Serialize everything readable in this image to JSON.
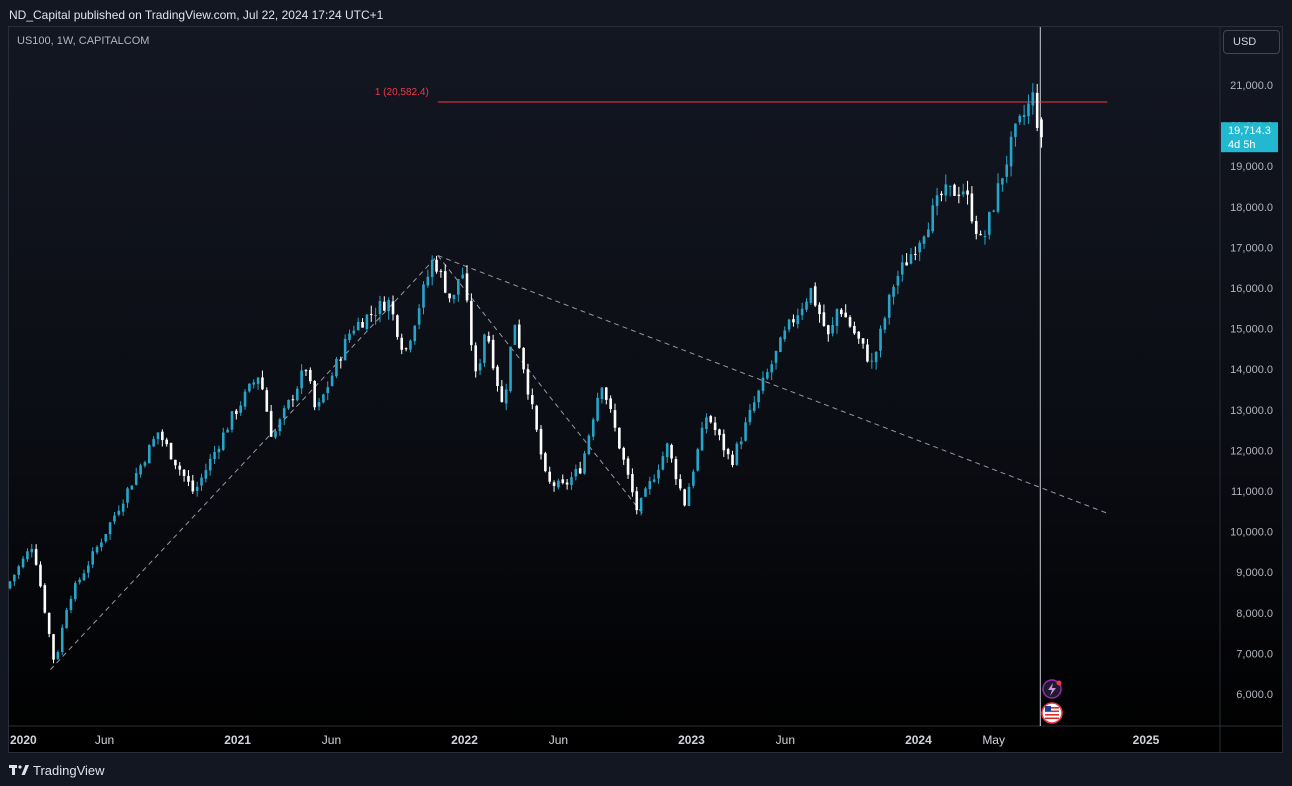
{
  "header": {
    "published_text": "ND_Capital published on TradingView.com, Jul 22, 2024 17:24 UTC+1"
  },
  "symbol_text": "US100, 1W, CAPITALCOM",
  "currency_button": "USD",
  "footer": {
    "brand": "TradingView"
  },
  "colors": {
    "up": "#26a5c9",
    "down": "#ffffff",
    "level_line": "#f23645",
    "price_label_bg": "#22b8cf",
    "trendline": "#9598a1",
    "background": "#131722"
  },
  "chart_data": {
    "type": "candlestick",
    "instrument": "US100",
    "timeframe": "1W",
    "ylim": [
      5400,
      22300
    ],
    "y_ticks": [
      6000,
      7000,
      8000,
      9000,
      10000,
      11000,
      12000,
      13000,
      14000,
      15000,
      16000,
      17000,
      18000,
      19000,
      20000,
      21000
    ],
    "y_tick_labels": [
      "6,000.0",
      "7,000.0",
      "8,000.0",
      "9,000.0",
      "10,000.0",
      "11,000.0",
      "12,000.0",
      "13,000.0",
      "14,000.0",
      "15,000.0",
      "16,000.0",
      "17,000.0",
      "18,000.0",
      "19,000.0",
      "20,000.0",
      "21,000.0"
    ],
    "x_ticks": [
      {
        "label": "2020",
        "date": "2020-01-01",
        "bold": true
      },
      {
        "label": "Jun",
        "date": "2020-06-01",
        "bold": false
      },
      {
        "label": "2021",
        "date": "2021-01-01",
        "bold": true
      },
      {
        "label": "Jun",
        "date": "2021-06-01",
        "bold": false
      },
      {
        "label": "2022",
        "date": "2022-01-01",
        "bold": true
      },
      {
        "label": "Jun",
        "date": "2022-06-01",
        "bold": false
      },
      {
        "label": "2023",
        "date": "2023-01-01",
        "bold": true
      },
      {
        "label": "Jun",
        "date": "2023-06-01",
        "bold": false
      },
      {
        "label": "2024",
        "date": "2024-01-01",
        "bold": true
      },
      {
        "label": "May",
        "date": "2024-05-01",
        "bold": false
      },
      {
        "label": "2025",
        "date": "2025-01-01",
        "bold": true
      }
    ],
    "path": [
      [
        "2020-01-01",
        8600
      ],
      [
        "2020-02-14",
        9700
      ],
      [
        "2020-03-20",
        6700
      ],
      [
        "2020-04-10",
        8300
      ],
      [
        "2020-06-10",
        10000
      ],
      [
        "2020-09-02",
        12450
      ],
      [
        "2020-10-30",
        10950
      ],
      [
        "2020-12-31",
        12850
      ],
      [
        "2021-02-12",
        13900
      ],
      [
        "2021-03-05",
        12300
      ],
      [
        "2021-04-28",
        14050
      ],
      [
        "2021-05-14",
        12900
      ],
      [
        "2021-07-10",
        15000
      ],
      [
        "2021-09-07",
        15700
      ],
      [
        "2021-10-04",
        14400
      ],
      [
        "2021-11-19",
        16750
      ],
      [
        "2021-12-20",
        15600
      ],
      [
        "2022-01-03",
        16600
      ],
      [
        "2022-01-27",
        13700
      ],
      [
        "2022-02-11",
        15100
      ],
      [
        "2022-03-11",
        13000
      ],
      [
        "2022-03-29",
        15250
      ],
      [
        "2022-05-20",
        11200
      ],
      [
        "2022-06-16",
        11100
      ],
      [
        "2022-07-15",
        11600
      ],
      [
        "2022-08-16",
        13750
      ],
      [
        "2022-10-13",
        10500
      ],
      [
        "2022-11-30",
        12100
      ],
      [
        "2022-12-28",
        10700
      ],
      [
        "2023-02-02",
        12900
      ],
      [
        "2023-03-13",
        11700
      ],
      [
        "2023-04-20",
        13200
      ],
      [
        "2023-06-10",
        14950
      ],
      [
        "2023-07-19",
        15950
      ],
      [
        "2023-08-18",
        14700
      ],
      [
        "2023-09-01",
        15600
      ],
      [
        "2023-10-26",
        14100
      ],
      [
        "2023-11-30",
        16150
      ],
      [
        "2023-12-29",
        16900
      ],
      [
        "2024-02-15",
        18300
      ],
      [
        "2024-03-21",
        18450
      ],
      [
        "2024-04-19",
        17050
      ],
      [
        "2024-05-20",
        18700
      ],
      [
        "2024-06-10",
        19750
      ],
      [
        "2024-07-10",
        20700
      ],
      [
        "2024-07-22",
        19714.3
      ]
    ],
    "current_price": {
      "value": 19714.3,
      "label": "19,714.3",
      "countdown": "4d 5h"
    },
    "horizontal_level": {
      "value": 20582.4,
      "label": "1 (20,582.4)",
      "from_date": "2021-11-19",
      "to_date": "2024-10-31"
    },
    "trendlines": [
      {
        "from": [
          "2020-03-06",
          6600
        ],
        "to": [
          "2021-11-19",
          16800
        ]
      },
      {
        "from": [
          "2021-11-19",
          16800
        ],
        "to": [
          "2022-10-14",
          10450
        ]
      },
      {
        "from": [
          "2021-11-19",
          16800
        ],
        "to": [
          "2024-10-31",
          10450
        ]
      }
    ],
    "vertical_marker_date": "2024-07-15",
    "event_icons": [
      "lightning-icon",
      "us-flag-icon"
    ]
  }
}
